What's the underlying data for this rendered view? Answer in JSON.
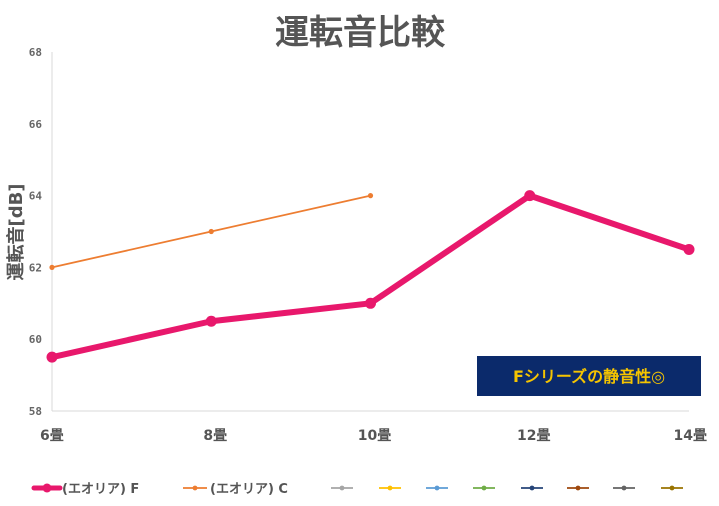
{
  "chart_data": {
    "type": "line",
    "title": "運転音比較",
    "xlabel": "",
    "ylabel": "運転音[dB]",
    "categories": [
      "6畳",
      "8畳",
      "10畳",
      "12畳",
      "14畳"
    ],
    "ylim": [
      58,
      68
    ],
    "yticks": [
      58,
      60,
      62,
      64,
      66,
      68
    ],
    "grid": false,
    "legend_position": "bottom",
    "series": [
      {
        "name": "(エオリア) F",
        "color": "#e8186c",
        "values": [
          59.5,
          60.5,
          61.0,
          64.0,
          62.5
        ]
      },
      {
        "name": "(エオリア) C",
        "color": "#ed7d31",
        "values": [
          62.0,
          63.0,
          64.0,
          null,
          null
        ]
      }
    ],
    "empty_legend_series": [
      {
        "color": "#a5a5a5"
      },
      {
        "color": "#ffc000"
      },
      {
        "color": "#5b9bd5"
      },
      {
        "color": "#70ad47"
      },
      {
        "color": "#264478"
      },
      {
        "color": "#9e480e"
      },
      {
        "color": "#636363"
      },
      {
        "color": "#997300"
      }
    ],
    "annotation": {
      "text": "Fシリーズの静音性◎",
      "bg_color": "#0b2a6b",
      "text_color": "#f5c400"
    }
  }
}
